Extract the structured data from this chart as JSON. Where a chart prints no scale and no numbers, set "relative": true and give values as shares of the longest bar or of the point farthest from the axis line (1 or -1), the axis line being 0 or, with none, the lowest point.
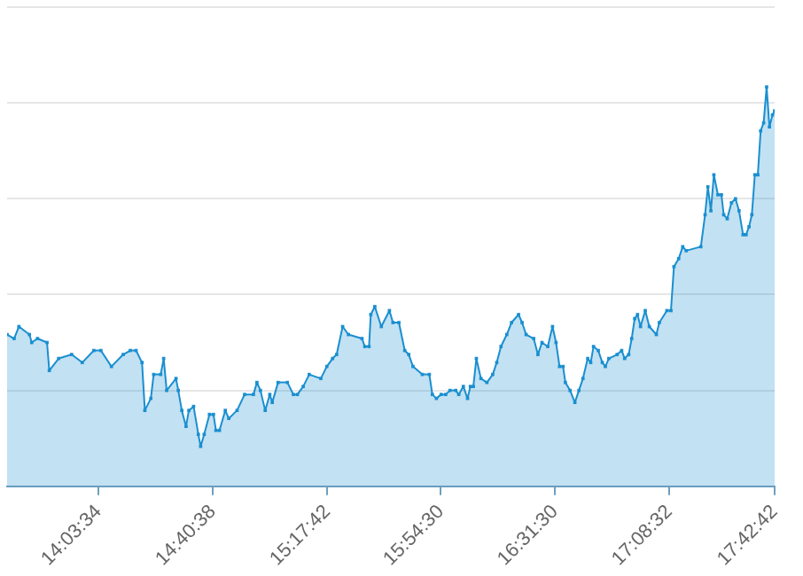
{
  "chart_data": {
    "type": "area",
    "relative": true,
    "grid": "y",
    "marker": "square",
    "line_style": "solid",
    "xlim": [
      13.5653,
      17.7117
    ],
    "xticks": [
      {
        "value": 14.0594,
        "label": "14:03:34"
      },
      {
        "value": 14.6772,
        "label": "14:40:38"
      },
      {
        "value": 15.295,
        "label": "15:17:42"
      },
      {
        "value": 15.9083,
        "label": "15:54:30"
      },
      {
        "value": 16.525,
        "label": "16:31:30"
      },
      {
        "value": 17.1422,
        "label": "17:08:32"
      },
      {
        "value": 17.7117,
        "label": "17:42:42"
      }
    ],
    "series": [
      {
        "color": "#1a8fd0",
        "x": [
          13.5653,
          13.6033,
          13.629,
          13.686,
          13.6984,
          13.7297,
          13.781,
          13.7934,
          13.8438,
          13.9141,
          13.9712,
          14.0339,
          14.0719,
          14.1289,
          14.1926,
          14.2306,
          14.262,
          14.2943,
          14.3095,
          14.3418,
          14.3571,
          14.3951,
          14.4112,
          14.4274,
          14.4778,
          14.4901,
          14.5091,
          14.532,
          14.5472,
          14.5728,
          14.5985,
          14.6109,
          14.6299,
          14.6584,
          14.6802,
          14.6935,
          14.7125,
          14.7439,
          14.7629,
          14.8076,
          14.8485,
          14.896,
          14.915,
          14.934,
          14.9597,
          14.9844,
          14.9977,
          15.0291,
          15.0795,
          15.1118,
          15.1336,
          15.165,
          15.1973,
          15.2601,
          15.2924,
          15.3237,
          15.3456,
          15.3779,
          15.4093,
          15.4825,
          15.4977,
          15.5205,
          15.53,
          15.5518,
          15.587,
          15.6307,
          15.6497,
          15.682,
          15.7134,
          15.7352,
          15.758,
          15.8084,
          15.8464,
          15.8626,
          15.8845,
          15.9102,
          15.9349,
          15.9577,
          15.989,
          16.0052,
          16.03,
          16.0528,
          16.068,
          16.0841,
          16.1003,
          16.125,
          16.1573,
          16.1887,
          16.2105,
          16.2333,
          16.2647,
          16.2903,
          16.3283,
          16.3473,
          16.3692,
          16.4101,
          16.4329,
          16.4548,
          16.4861,
          16.5118,
          16.5308,
          16.5498,
          16.5688,
          16.5812,
          16.6068,
          16.6325,
          16.6544,
          16.6762,
          16.7019,
          16.718,
          16.7333,
          16.7589,
          16.7808,
          16.797,
          16.816,
          16.8607,
          16.8854,
          16.9015,
          16.9234,
          16.9396,
          16.9557,
          16.971,
          16.9871,
          17.0128,
          17.0347,
          17.0727,
          17.0888,
          17.1297,
          17.1515,
          17.1677,
          17.1933,
          17.2152,
          17.2342,
          17.3131,
          17.3359,
          17.3511,
          17.3673,
          17.3834,
          17.4052,
          17.4243,
          17.4366,
          17.4556,
          17.4784,
          17.5003,
          17.5193,
          17.5411,
          17.5573,
          17.5734,
          17.5886,
          17.6048,
          17.6209,
          17.6361,
          17.6523,
          17.6684,
          17.6836,
          17.7,
          17.7117
        ],
        "values": [
          0.38,
          0.37,
          0.4,
          0.38,
          0.36,
          0.37,
          0.36,
          0.29,
          0.32,
          0.33,
          0.31,
          0.34,
          0.34,
          0.3,
          0.33,
          0.34,
          0.34,
          0.31,
          0.19,
          0.22,
          0.28,
          0.28,
          0.32,
          0.24,
          0.27,
          0.24,
          0.19,
          0.15,
          0.19,
          0.2,
          0.13,
          0.1,
          0.13,
          0.18,
          0.18,
          0.14,
          0.14,
          0.19,
          0.17,
          0.19,
          0.23,
          0.23,
          0.26,
          0.24,
          0.19,
          0.23,
          0.21,
          0.26,
          0.26,
          0.23,
          0.23,
          0.25,
          0.28,
          0.27,
          0.3,
          0.32,
          0.33,
          0.4,
          0.38,
          0.37,
          0.35,
          0.35,
          0.43,
          0.45,
          0.4,
          0.44,
          0.41,
          0.41,
          0.34,
          0.33,
          0.3,
          0.28,
          0.28,
          0.23,
          0.22,
          0.23,
          0.23,
          0.24,
          0.24,
          0.23,
          0.25,
          0.22,
          0.25,
          0.25,
          0.32,
          0.27,
          0.26,
          0.28,
          0.31,
          0.35,
          0.38,
          0.41,
          0.43,
          0.41,
          0.38,
          0.37,
          0.33,
          0.36,
          0.35,
          0.4,
          0.36,
          0.3,
          0.3,
          0.26,
          0.24,
          0.21,
          0.24,
          0.27,
          0.32,
          0.31,
          0.35,
          0.34,
          0.31,
          0.3,
          0.32,
          0.33,
          0.34,
          0.32,
          0.33,
          0.37,
          0.42,
          0.43,
          0.4,
          0.44,
          0.4,
          0.38,
          0.41,
          0.44,
          0.44,
          0.55,
          0.57,
          0.6,
          0.59,
          0.6,
          0.68,
          0.75,
          0.69,
          0.78,
          0.73,
          0.73,
          0.68,
          0.67,
          0.71,
          0.72,
          0.69,
          0.63,
          0.63,
          0.65,
          0.68,
          0.78,
          0.78,
          0.89,
          0.91,
          1.0,
          0.9,
          0.93,
          0.94
        ]
      }
    ]
  }
}
